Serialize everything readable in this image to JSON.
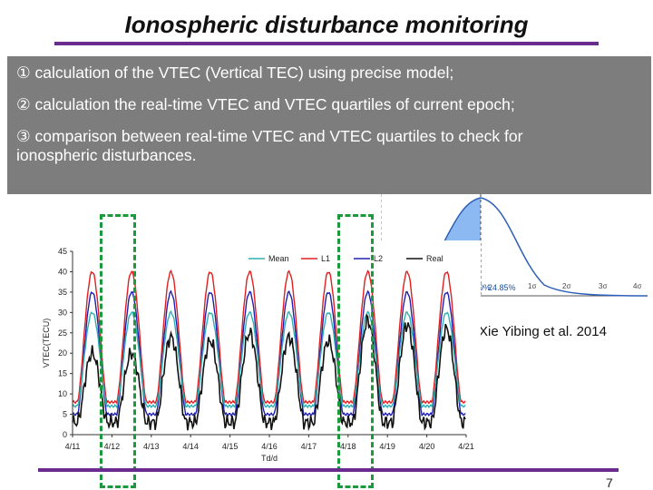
{
  "slide": {
    "title": "Ionospheric disturbance monitoring",
    "page_number": "7",
    "credit": "Xie Yibing et al. 2014",
    "bullets": [
      "① calculation of the VTEC (Vertical TEC) using precise model;",
      "② calculation the real-time VTEC and VTEC quartiles of current epoch;",
      "③ comparison between real-time VTEC and VTEC quartiles to check for",
      "ionospheric disturbances."
    ]
  },
  "normal_panel": {
    "percent_labels": [
      "0%",
      "24.85%"
    ],
    "sigma_labels": [
      "1σ",
      "2σ",
      "3σ",
      "4σ"
    ],
    "colors": {
      "fill": "#6fa8ee",
      "curve": "#2e5fb8"
    }
  },
  "chart_data": {
    "type": "line",
    "title": "",
    "xlabel": "Td/d",
    "ylabel": "VTEC(TECU)",
    "ylim": [
      0,
      45
    ],
    "xlim": [
      0,
      10
    ],
    "yticks": [
      "0",
      "5",
      "10",
      "15",
      "20",
      "25",
      "30",
      "35",
      "40",
      "45"
    ],
    "xticks": [
      "4/11",
      "4/12",
      "4/13",
      "4/14",
      "4/15",
      "4/16",
      "4/17",
      "4/18",
      "4/19",
      "4/20",
      "4/21"
    ],
    "legend": [
      "Mean",
      "L1",
      "L2",
      "Real"
    ],
    "legend_position": "top",
    "series": [
      {
        "name": "L1",
        "color": "#e02020",
        "daily_peaks": [
          40,
          40,
          40,
          40,
          40,
          40,
          40,
          40,
          40,
          40
        ],
        "daily_min": 8
      },
      {
        "name": "L2",
        "color": "#2020b0",
        "daily_peaks": [
          35,
          35,
          35,
          35,
          35,
          35,
          35,
          35,
          35,
          35
        ],
        "daily_min": 5
      },
      {
        "name": "Mean",
        "color": "#30b0b0",
        "daily_peaks": [
          30,
          30,
          30,
          30,
          30,
          30,
          30,
          30,
          30,
          30
        ],
        "daily_min": 7
      },
      {
        "name": "Real",
        "color": "#111111",
        "daily_peaks": [
          20,
          20,
          24,
          23,
          25,
          24,
          23,
          28,
          27,
          26
        ],
        "daily_min": 3
      }
    ]
  }
}
